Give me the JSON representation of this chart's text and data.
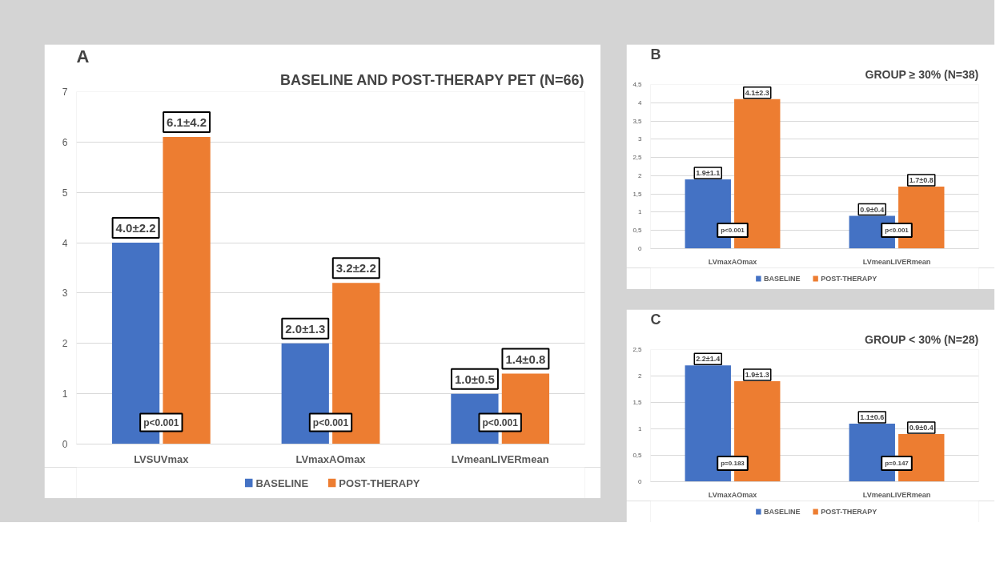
{
  "chart_data": [
    {
      "type": "bar",
      "title": "BASELINE AND POST-THERAPY PET (N=66)",
      "categories": [
        "LVSUVmax",
        "LVmaxAOmax",
        "LVmeanLIVERmean"
      ],
      "series": [
        {
          "name": "BASELINE",
          "color": "#4472c4",
          "values": [
            4.0,
            2.0,
            1.0
          ],
          "value_labels": [
            "4.0±2.2",
            "2.0±1.3",
            "1.0±0.5"
          ]
        },
        {
          "name": "POST-THERAPY",
          "color": "#ed7d31",
          "values": [
            6.1,
            3.2,
            1.4
          ],
          "value_labels": [
            "6.1±4.2",
            "3.2±2.2",
            "1.4±0.8"
          ]
        }
      ],
      "ylim": [
        0,
        7
      ],
      "yticks": [
        0,
        1,
        2,
        3,
        4,
        5,
        6,
        7
      ],
      "grid": "y",
      "legend": "bottom",
      "annotations": [
        "A",
        "p<0.001",
        "p<0.001",
        "p<0.001"
      ]
    },
    {
      "type": "bar",
      "title": "GROUP ≥ 30% (N=38)",
      "categories": [
        "LVmaxAOmax",
        "LVmeanLIVERmean"
      ],
      "series": [
        {
          "name": "BASELINE",
          "color": "#4472c4",
          "values": [
            1.9,
            0.9
          ],
          "value_labels": [
            "1.9±1.1",
            "0.9±0.4"
          ]
        },
        {
          "name": "POST-THERAPY",
          "color": "#ed7d31",
          "values": [
            4.1,
            1.7
          ],
          "value_labels": [
            "4.1±2.3",
            "1.7±0.8"
          ]
        }
      ],
      "ylim": [
        0,
        4.5
      ],
      "yticks": [
        0,
        {
          "value": 0.5,
          "label": "0,5"
        },
        1,
        {
          "value": 1.5,
          "label": "1,5"
        },
        2,
        {
          "value": 2.5,
          "label": "2,5"
        },
        3,
        {
          "value": 3.5,
          "label": "3,5"
        },
        4,
        {
          "value": 4.5,
          "label": "4,5"
        }
      ],
      "grid": "y",
      "legend": "bottom",
      "annotations": [
        "B",
        "p<0.001",
        "p<0.001"
      ]
    },
    {
      "type": "bar",
      "title": "GROUP < 30% (N=28)",
      "categories": [
        "LVmaxAOmax",
        "LVmeanLIVERmean"
      ],
      "series": [
        {
          "name": "BASELINE",
          "color": "#4472c4",
          "values": [
            2.2,
            1.1
          ],
          "value_labels": [
            "2.2±1.4",
            "1.1±0.6"
          ]
        },
        {
          "name": "POST-THERAPY",
          "color": "#ed7d31",
          "values": [
            1.9,
            0.9
          ],
          "value_labels": [
            "1.9±1.3",
            "0.9±0.4"
          ]
        }
      ],
      "ylim": [
        0,
        2.5
      ],
      "yticks": [
        0,
        {
          "value": 0.5,
          "label": "0,5"
        },
        1,
        {
          "value": 1.5,
          "label": "1,5"
        },
        2,
        {
          "value": 2.5,
          "label": "2,5"
        }
      ],
      "grid": "y",
      "legend": "bottom",
      "annotations": [
        "C",
        "p=0.183",
        "p=0.147"
      ]
    }
  ]
}
